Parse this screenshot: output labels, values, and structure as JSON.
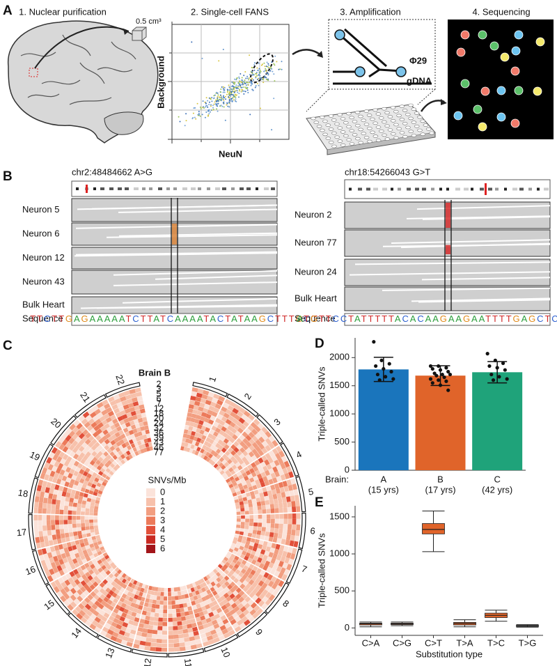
{
  "panel_a": {
    "letter": "A",
    "steps": [
      "1. Nuclear purification",
      "2. Single-cell FANS",
      "3. Amplification",
      "4. Sequencing"
    ],
    "cube_label": "0.5 cm³",
    "fans_ylabel": "Background",
    "fans_xlabel": "NeuN",
    "enzyme_label": "Φ29",
    "template_label": "gDNA"
  },
  "panel_b": {
    "letter": "B",
    "loci": [
      {
        "title": "chr2:48484662 A>G",
        "rows": [
          "Neuron 5",
          "Neuron 6",
          "Neuron 12",
          "Neuron 43",
          "Bulk Heart"
        ],
        "sequence_label": "Sequence",
        "sequence": "TTCTTGAGAAAAATCTTATCAAAATACTATAAGCTTTGCT"
      },
      {
        "title": "chr18:54266043 G>T",
        "rows": [
          "Neuron 2",
          "Neuron 77",
          "Neuron 24",
          "Bulk Heart"
        ],
        "sequence_label": "Sequence",
        "sequence": "ATGTTCCTATTTTTACACAAGAAGAATTTTGAGCTCTGAAG"
      }
    ]
  },
  "panel_c": {
    "letter": "C",
    "title": "Brain B",
    "chromosomes": [
      "1",
      "2",
      "3",
      "4",
      "5",
      "6",
      "7",
      "8",
      "9",
      "10",
      "11",
      "12",
      "13",
      "14",
      "15",
      "16",
      "17",
      "18",
      "19",
      "20",
      "21",
      "22"
    ],
    "samples": [
      "2",
      "3",
      "5",
      "6",
      "7",
      "12",
      "18",
      "20",
      "24",
      "32",
      "36",
      "39",
      "43",
      "46",
      "77"
    ],
    "legend_title": "SNVs/Mb",
    "legend": [
      {
        "label": "0",
        "color": "#fbe3da"
      },
      {
        "label": "1",
        "color": "#f7c1ab"
      },
      {
        "label": "2",
        "color": "#f29e80"
      },
      {
        "label": "3",
        "color": "#ec7a5a"
      },
      {
        "label": "4",
        "color": "#e2503a"
      },
      {
        "label": "5",
        "color": "#c92a22"
      },
      {
        "label": "6",
        "color": "#a3151a"
      }
    ]
  },
  "chart_data": [
    {
      "type": "bar",
      "letter": "D",
      "ylabel": "Triple-called SNVs",
      "x_prefix": "Brain:",
      "categories": [
        "A",
        "B",
        "C"
      ],
      "category_sublabels": [
        "(15 yrs)",
        "(17 yrs)",
        "(42 yrs)"
      ],
      "values": [
        1790,
        1680,
        1740
      ],
      "errors": [
        215,
        175,
        190
      ],
      "colors": [
        "#1a75bc",
        "#e0642a",
        "#1fa37a"
      ],
      "points": [
        [
          2280,
          1950,
          1890,
          1850,
          1800,
          1750,
          1700,
          1660,
          1620,
          1600
        ],
        [
          1850,
          1850,
          1820,
          1800,
          1780,
          1750,
          1720,
          1700,
          1700,
          1680,
          1650,
          1620,
          1600,
          1580,
          1550,
          1510,
          1420
        ],
        [
          2070,
          1950,
          1900,
          1850,
          1820,
          1780,
          1700,
          1660,
          1620,
          1600
        ]
      ],
      "ylim": [
        0,
        2350
      ],
      "yticks": [
        0,
        500,
        1000,
        1500,
        2000
      ]
    },
    {
      "type": "box",
      "letter": "E",
      "ylabel": "Triple-called SNVs",
      "xlabel": "Substitution type",
      "categories": [
        "C>A",
        "C>G",
        "C>T",
        "T>A",
        "T>C",
        "T>G"
      ],
      "color": "#e0642a",
      "boxes": [
        {
          "whislo": 15,
          "q1": 40,
          "med": 55,
          "q3": 65,
          "whishi": 80
        },
        {
          "whislo": 30,
          "q1": 45,
          "med": 55,
          "q3": 65,
          "whishi": 80
        },
        {
          "whislo": 1030,
          "q1": 1270,
          "med": 1330,
          "q3": 1410,
          "whishi": 1580
        },
        {
          "whislo": 15,
          "q1": 40,
          "med": 60,
          "q3": 75,
          "whishi": 110
        },
        {
          "whislo": 90,
          "q1": 140,
          "med": 170,
          "q3": 200,
          "whishi": 240
        },
        {
          "whislo": 10,
          "q1": 20,
          "med": 28,
          "q3": 35,
          "whishi": 45
        }
      ],
      "ylim": [
        -100,
        1650
      ],
      "yticks": [
        0,
        500,
        1000,
        1500
      ]
    }
  ]
}
